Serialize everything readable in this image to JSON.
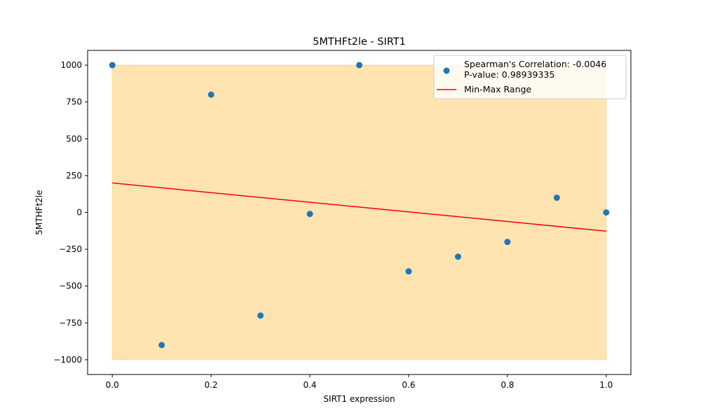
{
  "chart_data": {
    "type": "scatter",
    "title": "5MTHFt2le - SIRT1",
    "xlabel": "SIRT1 expression",
    "ylabel": "5MTHFt2le",
    "xlim": [
      -0.05,
      1.05
    ],
    "ylim": [
      -1100,
      1100
    ],
    "xticks": [
      0.0,
      0.2,
      0.4,
      0.6,
      0.8,
      1.0
    ],
    "xtick_labels": [
      "0.0",
      "0.2",
      "0.4",
      "0.6",
      "0.8",
      "1.0"
    ],
    "yticks": [
      1000,
      750,
      500,
      250,
      0,
      -250,
      -500,
      -750,
      -1000
    ],
    "ytick_labels": [
      "1000",
      "750",
      "500",
      "250",
      "0",
      "−250",
      "−500",
      "−750",
      "−1000"
    ],
    "grid": false,
    "points": {
      "x": [
        0.0,
        0.1,
        0.2,
        0.3,
        0.4,
        0.5,
        0.6,
        0.7,
        0.8,
        0.9,
        1.0
      ],
      "y": [
        1000,
        -900,
        800,
        -700,
        -10,
        1000,
        -400,
        -300,
        -200,
        100,
        0
      ],
      "color": "#1f77b4"
    },
    "range_band": {
      "x": [
        0.0,
        1.0
      ],
      "y": [
        -1000,
        1000
      ],
      "color": "#ffa500"
    },
    "fit_line": {
      "x": [
        0.0,
        1.0
      ],
      "y": [
        200,
        -127
      ],
      "color": "#ff0000"
    },
    "legend": {
      "location": "upper right",
      "entries": [
        {
          "label": "Spearman's Correlation: -0.0046\nP-value: 0.98939335",
          "marker": "point",
          "color": "#1f77b4"
        },
        {
          "label": "Min-Max Range",
          "marker": "line",
          "color": "#ff0000"
        }
      ]
    }
  }
}
